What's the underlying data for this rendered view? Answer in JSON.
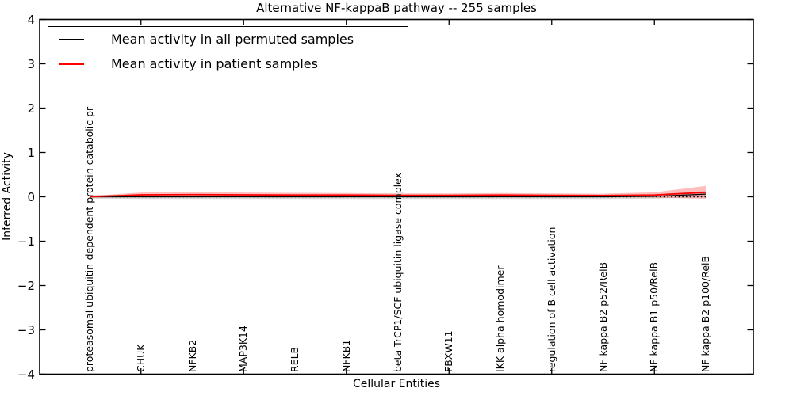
{
  "chart_data": {
    "type": "line",
    "title": "Alternative NF-kappaB pathway -- 255 samples",
    "xlabel": "Cellular Entities",
    "ylabel": "Inferred Activity",
    "ylim": [
      -4,
      4
    ],
    "yticks": [
      "4",
      "3",
      "2",
      "1",
      "0",
      "−1",
      "−2",
      "−3",
      "−4"
    ],
    "ytick_values": [
      4,
      3,
      2,
      1,
      0,
      -1,
      -2,
      -3,
      -4
    ],
    "xtick_indices": [
      1,
      3,
      5,
      7,
      9,
      11
    ],
    "grid": false,
    "legend_position": "upper left",
    "categories": [
      "proteasomal ubiquitin-dependent protein catabolic pr",
      "CHUK",
      "NFKB2",
      "MAP3K14",
      "RELB",
      "NFKB1",
      "beta TrCP1/SCF ubiquitin ligase complex",
      "FBXW11",
      "IKK alpha homodimer",
      "regulation of B cell activation",
      "NF kappa B2 p52/RelB",
      "NF kappa B1 p50/RelB",
      "NF kappa B2 p100/RelB"
    ],
    "series": [
      {
        "name": "Mean activity in all permuted samples",
        "color": "#000000",
        "band_color": "rgba(128,128,128,0.30)",
        "values": [
          0.0,
          0.0,
          0.0,
          0.0,
          0.0,
          0.0,
          0.0,
          0.0,
          0.0,
          0.0,
          0.0,
          0.01,
          0.06
        ],
        "std": [
          0.04,
          0.05,
          0.05,
          0.05,
          0.05,
          0.05,
          0.05,
          0.05,
          0.05,
          0.05,
          0.05,
          0.05,
          0.07
        ]
      },
      {
        "name": "Mean activity in patient samples",
        "color": "#ff0000",
        "band_color": "rgba(255,40,40,0.30)",
        "values": [
          0.0,
          0.045,
          0.05,
          0.045,
          0.04,
          0.04,
          0.035,
          0.035,
          0.04,
          0.035,
          0.03,
          0.04,
          0.1
        ],
        "std": [
          0.02,
          0.05,
          0.055,
          0.05,
          0.05,
          0.045,
          0.04,
          0.04,
          0.045,
          0.04,
          0.04,
          0.06,
          0.145
        ]
      }
    ],
    "zero_line": {
      "style": "dotted",
      "color": "#000000",
      "value": 0
    }
  }
}
